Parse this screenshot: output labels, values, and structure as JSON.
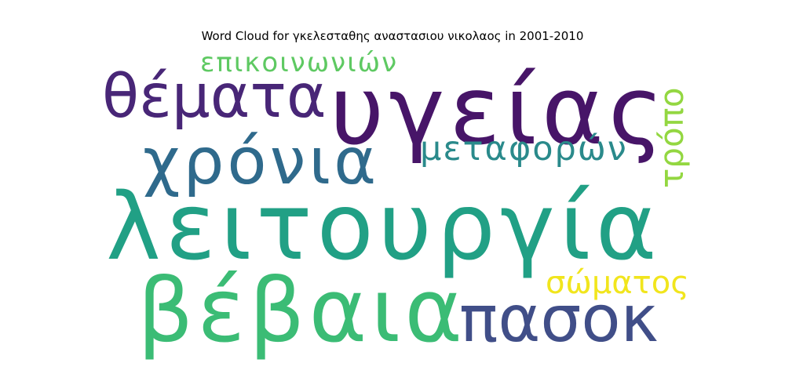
{
  "title": "Word Cloud for γκελεσταθης αναστασιου νικολαος in 2001-2010",
  "chart_data": {
    "type": "wordcloud",
    "title": "Word Cloud for γκελεσταθης αναστασιου νικολαος in 2001-2010",
    "words": [
      {
        "text": "λειτουργία",
        "color": "#21a085"
      },
      {
        "text": "υγείας",
        "color": "#471568"
      },
      {
        "text": "βέβαια",
        "color": "#3bbc75"
      },
      {
        "text": "χρόνια",
        "color": "#2f6a8c"
      },
      {
        "text": "πασοκ",
        "color": "#404e88"
      },
      {
        "text": "θέματα",
        "color": "#482677"
      },
      {
        "text": "μεταφορών",
        "color": "#2a8a8b"
      },
      {
        "text": "επικοινωνιών",
        "color": "#5ec962"
      },
      {
        "text": "σώματος",
        "color": "#f1e51d"
      },
      {
        "text": "τρόπο",
        "color": "#93d741"
      }
    ]
  }
}
